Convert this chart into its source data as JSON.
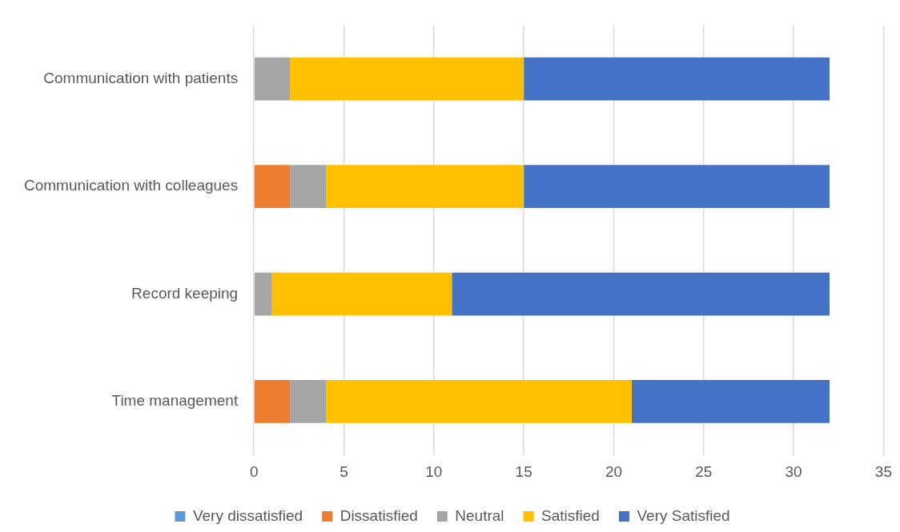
{
  "chart_data": {
    "type": "bar",
    "orientation": "horizontal",
    "stacked": true,
    "categories": [
      "Communication with patients",
      "Communication with colleagues",
      "Record keeping",
      "Time management"
    ],
    "series": [
      {
        "name": "Very dissatisfied",
        "color": "#5b9bd5",
        "values": [
          0,
          0,
          0,
          0
        ]
      },
      {
        "name": "Dissatisfied",
        "color": "#ed7d31",
        "values": [
          0,
          2,
          0,
          2
        ]
      },
      {
        "name": "Neutral",
        "color": "#a5a5a5",
        "values": [
          2,
          2,
          1,
          2
        ]
      },
      {
        "name": "Satisfied",
        "color": "#ffc000",
        "values": [
          13,
          11,
          10,
          17
        ]
      },
      {
        "name": "Very Satisfied",
        "color": "#4472c4",
        "values": [
          17,
          17,
          21,
          11
        ]
      }
    ],
    "xlim": [
      0,
      35
    ],
    "xticks": [
      0,
      5,
      10,
      15,
      20,
      25,
      30,
      35
    ],
    "grid": "x",
    "legend": "bottom"
  }
}
